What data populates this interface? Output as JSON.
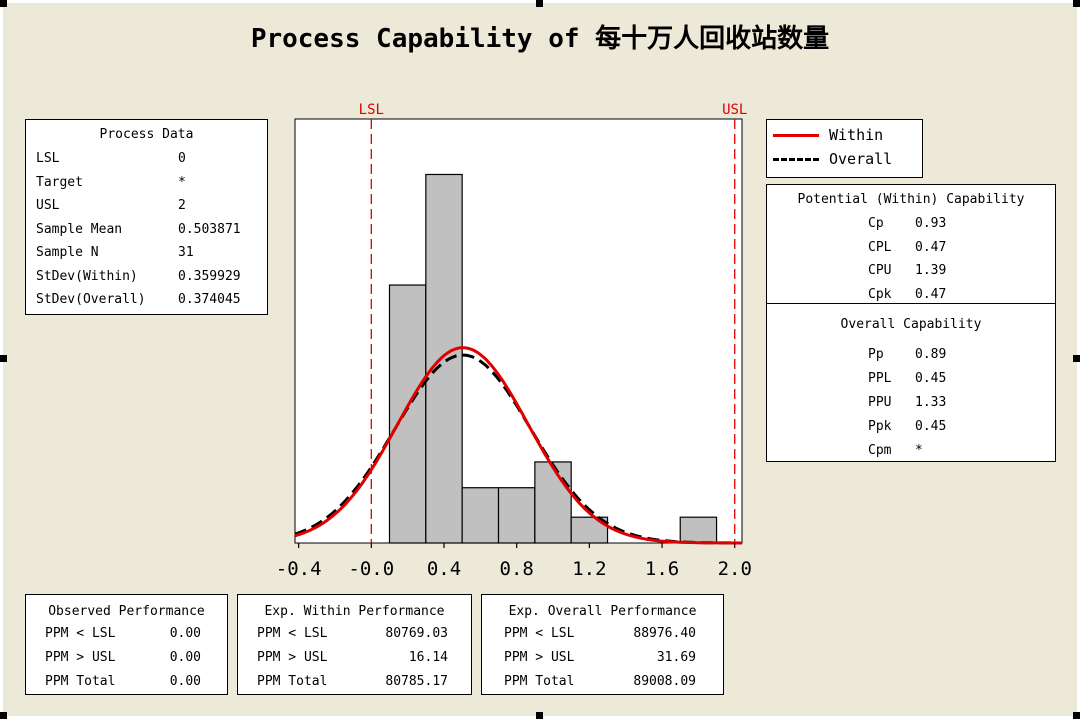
{
  "title": "Process Capability of 每十万人回收站数量",
  "process_data": {
    "header": "Process Data",
    "rows": [
      {
        "label": "LSL",
        "value": "0"
      },
      {
        "label": "Target",
        "value": "*"
      },
      {
        "label": "USL",
        "value": "2"
      },
      {
        "label": "Sample Mean",
        "value": "0.503871"
      },
      {
        "label": "Sample N",
        "value": "31"
      },
      {
        "label": "StDev(Within)",
        "value": "0.359929"
      },
      {
        "label": "StDev(Overall)",
        "value": "0.374045"
      }
    ]
  },
  "legend": {
    "items": [
      {
        "name": "Within",
        "color": "#e00000",
        "style": "solid"
      },
      {
        "name": "Overall",
        "color": "#000000",
        "style": "dashed"
      }
    ]
  },
  "potential_capability": {
    "header": "Potential (Within) Capability",
    "rows": [
      {
        "label": "Cp",
        "value": "0.93"
      },
      {
        "label": "CPL",
        "value": "0.47"
      },
      {
        "label": "CPU",
        "value": "1.39"
      },
      {
        "label": "Cpk",
        "value": "0.47"
      }
    ]
  },
  "overall_capability": {
    "header": "Overall Capability",
    "rows": [
      {
        "label": "Pp",
        "value": "0.89"
      },
      {
        "label": "PPL",
        "value": "0.45"
      },
      {
        "label": "PPU",
        "value": "1.33"
      },
      {
        "label": "Ppk",
        "value": "0.45"
      },
      {
        "label": "Cpm",
        "value": "*"
      }
    ]
  },
  "observed_performance": {
    "header": "Observed Performance",
    "rows": [
      {
        "label": "PPM < LSL",
        "value": "0.00"
      },
      {
        "label": "PPM > USL",
        "value": "0.00"
      },
      {
        "label": "PPM Total",
        "value": "0.00"
      }
    ]
  },
  "exp_within_performance": {
    "header": "Exp. Within Performance",
    "rows": [
      {
        "label": "PPM < LSL",
        "value": "80769.03"
      },
      {
        "label": "PPM > USL",
        "value": "16.14"
      },
      {
        "label": "PPM Total",
        "value": "80785.17"
      }
    ]
  },
  "exp_overall_performance": {
    "header": "Exp. Overall Performance",
    "rows": [
      {
        "label": "PPM < LSL",
        "value": "88976.40"
      },
      {
        "label": "PPM > USL",
        "value": "31.69"
      },
      {
        "label": "PPM Total",
        "value": "89008.09"
      }
    ]
  },
  "chart_data": {
    "type": "bar",
    "subtype": "histogram with fitted normal curves",
    "bins": [
      {
        "start": 0.1,
        "end": 0.3,
        "count": 7
      },
      {
        "start": 0.3,
        "end": 0.5,
        "count": 10
      },
      {
        "start": 0.5,
        "end": 0.7,
        "count": 1.5
      },
      {
        "start": 0.7,
        "end": 0.9,
        "count": 1.5
      },
      {
        "start": 0.9,
        "end": 1.1,
        "count": 2.2
      },
      {
        "start": 1.1,
        "end": 1.3,
        "count": 0.7
      },
      {
        "start": 1.7,
        "end": 1.9,
        "count": 0.7
      }
    ],
    "xlim": [
      -0.42,
      2.04
    ],
    "ylim": [
      0,
      10.8
    ],
    "x_ticks": [
      "-0.4",
      "-0.0",
      "0.4",
      "0.8",
      "1.2",
      "1.6",
      "2.0"
    ],
    "x_tick_values": [
      -0.4,
      0.0,
      0.4,
      0.8,
      1.2,
      1.6,
      2.0
    ],
    "spec_lines": [
      {
        "name": "LSL",
        "value": 0,
        "color": "#e00000"
      },
      {
        "name": "USL",
        "value": 2,
        "color": "#e00000"
      }
    ],
    "curves": [
      {
        "name": "Within",
        "mean": 0.503871,
        "stdev": 0.359929,
        "peak": 5.3,
        "color": "#e00000",
        "style": "solid"
      },
      {
        "name": "Overall",
        "mean": 0.503871,
        "stdev": 0.374045,
        "peak": 5.1,
        "color": "#000000",
        "style": "dashed"
      }
    ],
    "bar_color": "#c0c0c0",
    "grid": false
  }
}
